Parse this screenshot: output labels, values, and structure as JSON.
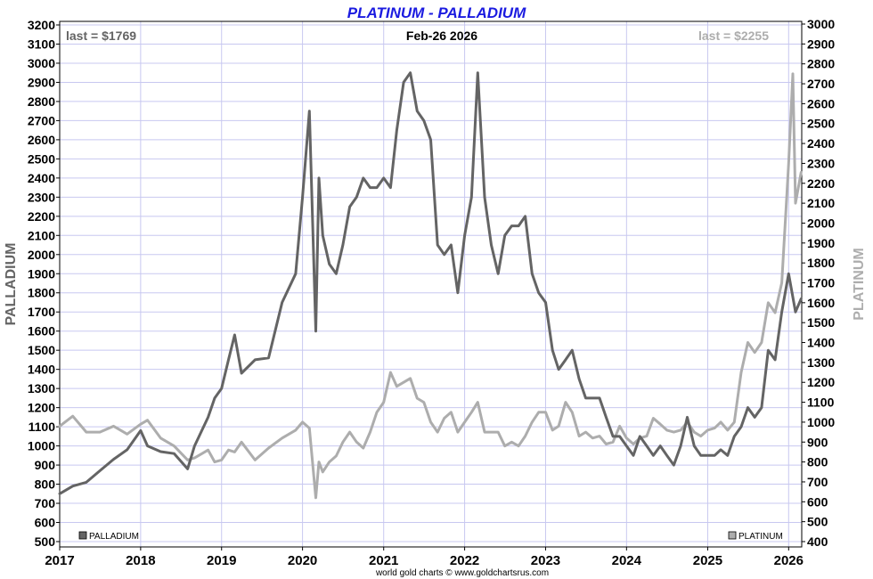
{
  "chart_data": {
    "type": "line",
    "title": "PLATINUM - PALLADIUM",
    "date_label": "Feb-26  2026",
    "credit": "world gold charts © www.goldchartsrus.com",
    "grid": true,
    "colors": {
      "title": "#1b1be0",
      "palladium": "#646464",
      "platinum": "#adadad",
      "grid": "#c8c8f0"
    },
    "x_axis": {
      "range": [
        "2017-01-01",
        "2026-03-01"
      ],
      "tick_labels": [
        "2017",
        "2018",
        "2019",
        "2020",
        "2021",
        "2022",
        "2023",
        "2024",
        "2025",
        "2026"
      ]
    },
    "left_axis": {
      "label": "PALLADIUM",
      "range": [
        500,
        3200
      ],
      "tick_labels": [
        "3200",
        "3100",
        "3000",
        "2900",
        "2800",
        "2700",
        "2600",
        "2500",
        "2400",
        "2300",
        "2200",
        "2100",
        "2000",
        "1900",
        "1800",
        "1700",
        "1600",
        "1500",
        "1400",
        "1300",
        "1200",
        "1100",
        "1000",
        "900",
        "800",
        "700",
        "600",
        "500"
      ]
    },
    "right_axis": {
      "label": "PLATINUM",
      "range": [
        400,
        3000
      ],
      "tick_labels": [
        "3000",
        "2900",
        "2800",
        "2700",
        "2600",
        "2500",
        "2400",
        "2300",
        "2200",
        "2100",
        "2000",
        "1900",
        "1800",
        "1700",
        "1600",
        "1500",
        "1400",
        "1300",
        "1200",
        "1100",
        "1000",
        "900",
        "800",
        "700",
        "600",
        "500",
        "400"
      ]
    },
    "series": [
      {
        "name": "PALLADIUM",
        "axis": "left",
        "last_label": "last = $1769",
        "legend_position": "bottom-left",
        "points": [
          [
            "2017-01-01",
            750
          ],
          [
            "2017-03-01",
            790
          ],
          [
            "2017-05-01",
            810
          ],
          [
            "2017-07-01",
            870
          ],
          [
            "2017-09-01",
            930
          ],
          [
            "2017-11-01",
            980
          ],
          [
            "2018-01-01",
            1080
          ],
          [
            "2018-02-01",
            1000
          ],
          [
            "2018-04-01",
            970
          ],
          [
            "2018-06-01",
            960
          ],
          [
            "2018-08-01",
            880
          ],
          [
            "2018-09-01",
            1000
          ],
          [
            "2018-11-01",
            1150
          ],
          [
            "2018-12-01",
            1250
          ],
          [
            "2019-01-01",
            1300
          ],
          [
            "2019-02-01",
            1450
          ],
          [
            "2019-03-01",
            1580
          ],
          [
            "2019-04-01",
            1380
          ],
          [
            "2019-06-01",
            1450
          ],
          [
            "2019-08-01",
            1460
          ],
          [
            "2019-10-01",
            1750
          ],
          [
            "2019-12-01",
            1900
          ],
          [
            "2020-01-01",
            2300
          ],
          [
            "2020-02-01",
            2750
          ],
          [
            "2020-03-01",
            1600
          ],
          [
            "2020-03-15",
            2400
          ],
          [
            "2020-04-01",
            2100
          ],
          [
            "2020-05-01",
            1950
          ],
          [
            "2020-06-01",
            1900
          ],
          [
            "2020-07-01",
            2050
          ],
          [
            "2020-08-01",
            2250
          ],
          [
            "2020-09-01",
            2300
          ],
          [
            "2020-10-01",
            2400
          ],
          [
            "2020-11-01",
            2350
          ],
          [
            "2020-12-01",
            2350
          ],
          [
            "2021-01-01",
            2400
          ],
          [
            "2021-02-01",
            2350
          ],
          [
            "2021-03-01",
            2650
          ],
          [
            "2021-04-01",
            2900
          ],
          [
            "2021-05-01",
            2950
          ],
          [
            "2021-06-01",
            2750
          ],
          [
            "2021-07-01",
            2700
          ],
          [
            "2021-08-01",
            2600
          ],
          [
            "2021-09-01",
            2050
          ],
          [
            "2021-10-01",
            2000
          ],
          [
            "2021-11-01",
            2050
          ],
          [
            "2021-12-01",
            1800
          ],
          [
            "2022-01-01",
            2100
          ],
          [
            "2022-02-01",
            2300
          ],
          [
            "2022-03-01",
            2950
          ],
          [
            "2022-04-01",
            2300
          ],
          [
            "2022-05-01",
            2050
          ],
          [
            "2022-06-01",
            1900
          ],
          [
            "2022-07-01",
            2100
          ],
          [
            "2022-08-01",
            2150
          ],
          [
            "2022-09-01",
            2150
          ],
          [
            "2022-10-01",
            2200
          ],
          [
            "2022-11-01",
            1900
          ],
          [
            "2022-12-01",
            1800
          ],
          [
            "2023-01-01",
            1750
          ],
          [
            "2023-02-01",
            1500
          ],
          [
            "2023-03-01",
            1400
          ],
          [
            "2023-04-01",
            1450
          ],
          [
            "2023-05-01",
            1500
          ],
          [
            "2023-06-01",
            1350
          ],
          [
            "2023-07-01",
            1250
          ],
          [
            "2023-08-01",
            1250
          ],
          [
            "2023-09-01",
            1250
          ],
          [
            "2023-10-01",
            1150
          ],
          [
            "2023-11-01",
            1050
          ],
          [
            "2023-12-01",
            1050
          ],
          [
            "2024-01-01",
            1000
          ],
          [
            "2024-02-01",
            950
          ],
          [
            "2024-03-01",
            1050
          ],
          [
            "2024-04-01",
            1000
          ],
          [
            "2024-05-01",
            950
          ],
          [
            "2024-06-01",
            1000
          ],
          [
            "2024-07-01",
            950
          ],
          [
            "2024-08-01",
            900
          ],
          [
            "2024-09-01",
            1000
          ],
          [
            "2024-10-01",
            1150
          ],
          [
            "2024-11-01",
            1000
          ],
          [
            "2024-12-01",
            950
          ],
          [
            "2025-01-01",
            950
          ],
          [
            "2025-02-01",
            950
          ],
          [
            "2025-03-01",
            980
          ],
          [
            "2025-04-01",
            950
          ],
          [
            "2025-05-01",
            1050
          ],
          [
            "2025-06-01",
            1100
          ],
          [
            "2025-07-01",
            1200
          ],
          [
            "2025-08-01",
            1150
          ],
          [
            "2025-09-01",
            1200
          ],
          [
            "2025-10-01",
            1500
          ],
          [
            "2025-11-01",
            1450
          ],
          [
            "2025-12-01",
            1700
          ],
          [
            "2026-01-01",
            1900
          ],
          [
            "2026-02-01",
            1700
          ],
          [
            "2026-02-26",
            1769
          ]
        ]
      },
      {
        "name": "PLATINUM",
        "axis": "right",
        "last_label": "last = $2255",
        "legend_position": "bottom-right",
        "points": [
          [
            "2017-01-01",
            980
          ],
          [
            "2017-03-01",
            1030
          ],
          [
            "2017-05-01",
            950
          ],
          [
            "2017-07-01",
            950
          ],
          [
            "2017-09-01",
            980
          ],
          [
            "2017-11-01",
            940
          ],
          [
            "2018-01-01",
            990
          ],
          [
            "2018-02-01",
            1010
          ],
          [
            "2018-04-01",
            920
          ],
          [
            "2018-06-01",
            880
          ],
          [
            "2018-08-01",
            810
          ],
          [
            "2018-09-01",
            820
          ],
          [
            "2018-11-01",
            860
          ],
          [
            "2018-12-01",
            800
          ],
          [
            "2019-01-01",
            810
          ],
          [
            "2019-02-01",
            860
          ],
          [
            "2019-03-01",
            850
          ],
          [
            "2019-04-01",
            900
          ],
          [
            "2019-06-01",
            810
          ],
          [
            "2019-08-01",
            870
          ],
          [
            "2019-10-01",
            920
          ],
          [
            "2019-12-01",
            960
          ],
          [
            "2020-01-01",
            1000
          ],
          [
            "2020-02-01",
            970
          ],
          [
            "2020-03-01",
            620
          ],
          [
            "2020-03-15",
            800
          ],
          [
            "2020-04-01",
            750
          ],
          [
            "2020-05-01",
            800
          ],
          [
            "2020-06-01",
            830
          ],
          [
            "2020-07-01",
            900
          ],
          [
            "2020-08-01",
            950
          ],
          [
            "2020-09-01",
            900
          ],
          [
            "2020-10-01",
            870
          ],
          [
            "2020-11-01",
            950
          ],
          [
            "2020-12-01",
            1050
          ],
          [
            "2021-01-01",
            1100
          ],
          [
            "2021-02-01",
            1250
          ],
          [
            "2021-03-01",
            1180
          ],
          [
            "2021-04-01",
            1200
          ],
          [
            "2021-05-01",
            1220
          ],
          [
            "2021-06-01",
            1120
          ],
          [
            "2021-07-01",
            1100
          ],
          [
            "2021-08-01",
            1000
          ],
          [
            "2021-09-01",
            950
          ],
          [
            "2021-10-01",
            1020
          ],
          [
            "2021-11-01",
            1050
          ],
          [
            "2021-12-01",
            950
          ],
          [
            "2022-01-01",
            1000
          ],
          [
            "2022-02-01",
            1050
          ],
          [
            "2022-03-01",
            1100
          ],
          [
            "2022-04-01",
            950
          ],
          [
            "2022-05-01",
            950
          ],
          [
            "2022-06-01",
            950
          ],
          [
            "2022-07-01",
            880
          ],
          [
            "2022-08-01",
            900
          ],
          [
            "2022-09-01",
            880
          ],
          [
            "2022-10-01",
            930
          ],
          [
            "2022-11-01",
            1000
          ],
          [
            "2022-12-01",
            1050
          ],
          [
            "2023-01-01",
            1050
          ],
          [
            "2023-02-01",
            960
          ],
          [
            "2023-03-01",
            980
          ],
          [
            "2023-04-01",
            1100
          ],
          [
            "2023-05-01",
            1050
          ],
          [
            "2023-06-01",
            930
          ],
          [
            "2023-07-01",
            950
          ],
          [
            "2023-08-01",
            920
          ],
          [
            "2023-09-01",
            930
          ],
          [
            "2023-10-01",
            890
          ],
          [
            "2023-11-01",
            900
          ],
          [
            "2023-12-01",
            980
          ],
          [
            "2024-01-01",
            920
          ],
          [
            "2024-02-01",
            890
          ],
          [
            "2024-03-01",
            920
          ],
          [
            "2024-04-01",
            930
          ],
          [
            "2024-05-01",
            1020
          ],
          [
            "2024-06-01",
            990
          ],
          [
            "2024-07-01",
            960
          ],
          [
            "2024-08-01",
            950
          ],
          [
            "2024-09-01",
            960
          ],
          [
            "2024-10-01",
            1000
          ],
          [
            "2024-11-01",
            950
          ],
          [
            "2024-12-01",
            930
          ],
          [
            "2025-01-01",
            960
          ],
          [
            "2025-02-01",
            970
          ],
          [
            "2025-03-01",
            1000
          ],
          [
            "2025-04-01",
            960
          ],
          [
            "2025-05-01",
            1000
          ],
          [
            "2025-06-01",
            1250
          ],
          [
            "2025-07-01",
            1400
          ],
          [
            "2025-08-01",
            1350
          ],
          [
            "2025-09-01",
            1400
          ],
          [
            "2025-10-01",
            1600
          ],
          [
            "2025-11-01",
            1550
          ],
          [
            "2025-12-01",
            1700
          ],
          [
            "2026-01-01",
            2300
          ],
          [
            "2026-01-20",
            2750
          ],
          [
            "2026-02-01",
            2100
          ],
          [
            "2026-02-26",
            2255
          ]
        ]
      }
    ]
  }
}
